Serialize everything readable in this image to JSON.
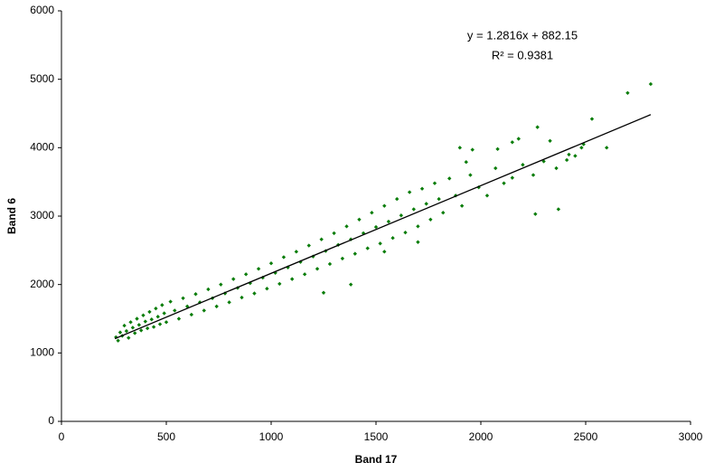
{
  "chart_data": {
    "type": "scatter",
    "x_label": "Band 17",
    "y_label": "Band 6",
    "xlim": [
      0,
      3000
    ],
    "ylim": [
      0,
      6000
    ],
    "xticks": [
      0,
      500,
      1000,
      1500,
      2000,
      2500,
      3000
    ],
    "yticks": [
      0,
      1000,
      2000,
      3000,
      4000,
      5000,
      6000
    ],
    "grid": false,
    "annotations": [
      "y = 1.2816x + 882.15",
      "R² = 0.9381"
    ],
    "series": [
      {
        "color": "#0a7d0a",
        "x": [
          260,
          270,
          280,
          290,
          300,
          310,
          320,
          330,
          340,
          350,
          360,
          370,
          380,
          390,
          400,
          410,
          420,
          430,
          440,
          450,
          460,
          470,
          480,
          490,
          500,
          520,
          540,
          560,
          580,
          600,
          620,
          640,
          660,
          680,
          700,
          720,
          740,
          760,
          780,
          800,
          820,
          840,
          860,
          880,
          900,
          920,
          940,
          960,
          980,
          1000,
          1020,
          1040,
          1060,
          1080,
          1100,
          1120,
          1140,
          1160,
          1180,
          1200,
          1220,
          1240,
          1260,
          1280,
          1300,
          1320,
          1340,
          1360,
          1380,
          1400,
          1420,
          1440,
          1460,
          1480,
          1500,
          1520,
          1540,
          1560,
          1580,
          1600,
          1620,
          1640,
          1660,
          1680,
          1700,
          1720,
          1740,
          1760,
          1780,
          1800,
          1820,
          1850,
          1880,
          1910,
          1950,
          1990,
          2030,
          2070,
          2110,
          2150,
          2200,
          2250,
          2300,
          2360,
          2420,
          2600,
          1250,
          1380,
          1540,
          1700,
          2700,
          2810,
          2530,
          2270,
          2260,
          2370,
          2410,
          2450,
          2480,
          2490,
          2330,
          2180,
          2150,
          2080,
          1960,
          1900,
          1930
        ],
        "y": [
          1230,
          1180,
          1300,
          1250,
          1400,
          1320,
          1220,
          1450,
          1370,
          1290,
          1500,
          1410,
          1330,
          1550,
          1460,
          1360,
          1600,
          1490,
          1380,
          1650,
          1530,
          1420,
          1700,
          1580,
          1450,
          1750,
          1620,
          1500,
          1800,
          1680,
          1560,
          1860,
          1740,
          1620,
          1930,
          1800,
          1680,
          2000,
          1870,
          1740,
          2080,
          1950,
          1810,
          2150,
          2020,
          1870,
          2230,
          2100,
          1940,
          2310,
          2170,
          2010,
          2400,
          2250,
          2080,
          2480,
          2330,
          2150,
          2570,
          2410,
          2230,
          2660,
          2490,
          2300,
          2750,
          2580,
          2380,
          2850,
          2660,
          2450,
          2950,
          2750,
          2530,
          3050,
          2840,
          2600,
          3150,
          2920,
          2680,
          3250,
          3010,
          2760,
          3350,
          3100,
          2850,
          3400,
          3180,
          2950,
          3480,
          3250,
          3050,
          3550,
          3300,
          3150,
          3600,
          3420,
          3300,
          3700,
          3480,
          3560,
          3750,
          3600,
          3800,
          3700,
          3900,
          4000,
          1880,
          2000,
          2480,
          2620,
          4800,
          4930,
          4420,
          4300,
          3030,
          3100,
          3820,
          3880,
          4000,
          4050,
          4100,
          4130,
          4080,
          3980,
          3970,
          4000,
          3790
        ]
      },
      {
        "color": "#000000",
        "x": [
          255,
          2810
        ],
        "y": [
          1209,
          4483
        ]
      }
    ]
  }
}
